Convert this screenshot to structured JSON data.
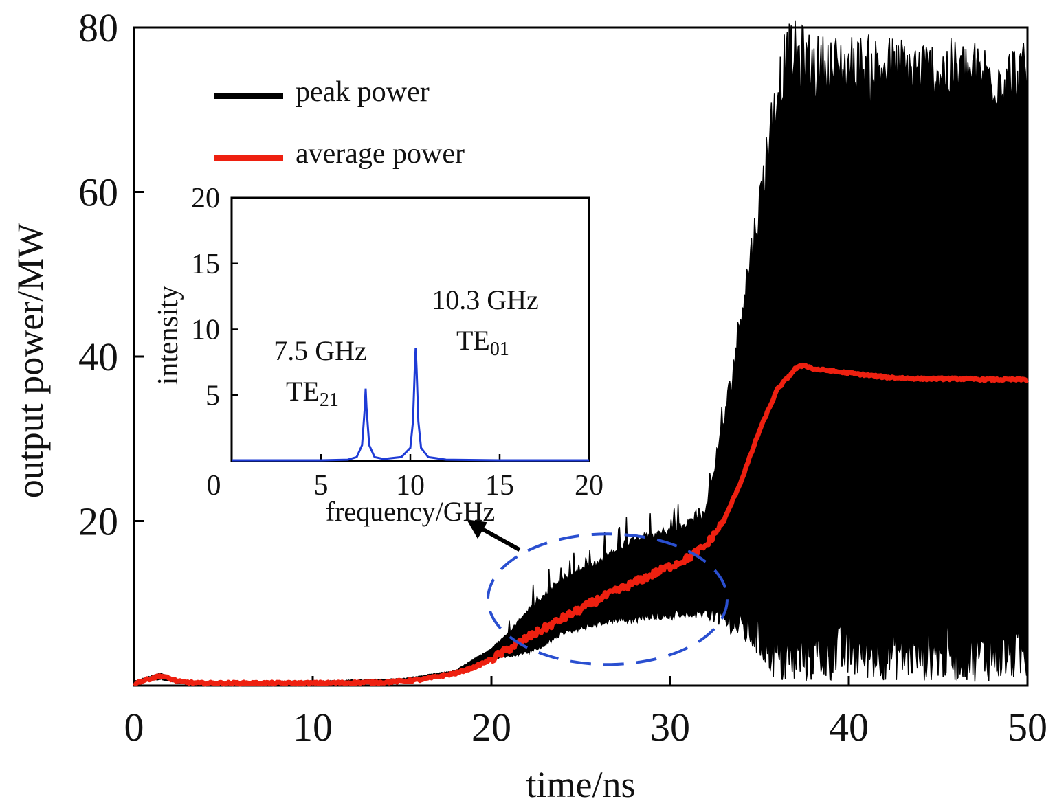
{
  "chart_data": [
    {
      "type": "line",
      "xlabel": "time/ns",
      "ylabel": "output power/MW",
      "xlim": [
        0,
        50
      ],
      "ylim": [
        0,
        80
      ],
      "xticks": [
        "0",
        "10",
        "20",
        "30",
        "40",
        "50"
      ],
      "yticks": [
        "20",
        "40",
        "60",
        "80"
      ],
      "legend_position": "top-left",
      "series": [
        {
          "name": "peak power",
          "color": "#000000",
          "envelope_x": [
            0,
            1.5,
            2.5,
            3.5,
            10,
            15,
            18,
            20,
            21,
            22,
            23,
            24,
            25,
            26,
            27,
            28,
            29,
            30,
            31,
            32,
            32.5,
            33,
            33.5,
            34,
            34.5,
            35,
            35.5,
            36,
            36.5,
            37,
            37.5,
            38,
            40,
            42,
            44,
            46,
            48,
            50
          ],
          "envelope_max": [
            0.5,
            1.5,
            0.6,
            0.4,
            0.5,
            0.8,
            1.8,
            4.5,
            6.5,
            9,
            11,
            13,
            14,
            15,
            16.5,
            18,
            18,
            19,
            19.5,
            21,
            27,
            32,
            38,
            46,
            52,
            58,
            66,
            72,
            76,
            76.5,
            76,
            75,
            75,
            75,
            74.5,
            74.5,
            74,
            74
          ],
          "envelope_min": [
            0.3,
            0.8,
            0.3,
            0.2,
            0.3,
            0.5,
            1.3,
            3.2,
            3.6,
            4,
            5,
            6.5,
            7,
            7.5,
            8,
            8,
            8.5,
            8.5,
            8.8,
            8.8,
            8.5,
            8,
            7.5,
            7,
            6.5,
            5.5,
            4.5,
            3.5,
            3,
            3.2,
            3.5,
            3.8,
            4,
            4,
            3.9,
            3.9,
            3.8,
            3.8
          ]
        },
        {
          "name": "average power",
          "color": "#ee2010",
          "x": [
            0,
            1.5,
            2.5,
            3.5,
            10,
            14,
            16,
            18,
            19,
            20,
            21,
            22,
            23,
            24,
            25,
            26,
            27,
            28,
            29,
            30,
            31,
            32,
            33,
            34,
            35,
            36,
            37,
            37.5,
            38,
            40,
            42,
            44,
            46,
            48,
            50
          ],
          "y": [
            0.3,
            1.2,
            0.5,
            0.3,
            0.3,
            0.4,
            0.7,
            1.5,
            2.2,
            3.2,
            4.5,
            5.8,
            7,
            8.2,
            9.3,
            10.5,
            11.5,
            12.5,
            13.5,
            14.5,
            15.5,
            17,
            20,
            25,
            31,
            36,
            38.5,
            39,
            38.5,
            38,
            37.5,
            37.3,
            37.3,
            37.2,
            37.2
          ]
        }
      ],
      "annotation": {
        "type": "ellipse",
        "color": "#2a4fd0",
        "style": "dashed",
        "center_x": 26.5,
        "center_y": 10.5,
        "arrow_to": "inset"
      }
    },
    {
      "type": "line",
      "xlabel": "frequency/GHz",
      "ylabel": "intensity",
      "xlim": [
        0,
        20
      ],
      "ylim": [
        0,
        20
      ],
      "xticks": [
        "0",
        "5",
        "10",
        "15",
        "20"
      ],
      "yticks": [
        "5",
        "10",
        "15",
        "20"
      ],
      "series": [
        {
          "color": "#1e3bd6",
          "x": [
            0,
            5,
            6.5,
            7.0,
            7.3,
            7.45,
            7.5,
            7.55,
            7.7,
            8.0,
            8.5,
            9.5,
            10.0,
            10.15,
            10.25,
            10.3,
            10.35,
            10.45,
            10.6,
            11,
            12,
            15,
            20
          ],
          "y": [
            0.05,
            0.05,
            0.1,
            0.3,
            1.2,
            4,
            5.5,
            4,
            1.2,
            0.3,
            0.15,
            0.3,
            1.0,
            3,
            7,
            8.6,
            7,
            3,
            1.0,
            0.3,
            0.1,
            0.05,
            0.05
          ]
        }
      ],
      "annotations": [
        {
          "line1": "7.5 GHz",
          "mode_base": "TE",
          "mode_sub": "21"
        },
        {
          "line1": "10.3 GHz",
          "mode_base": "TE",
          "mode_sub": "01"
        }
      ]
    }
  ]
}
